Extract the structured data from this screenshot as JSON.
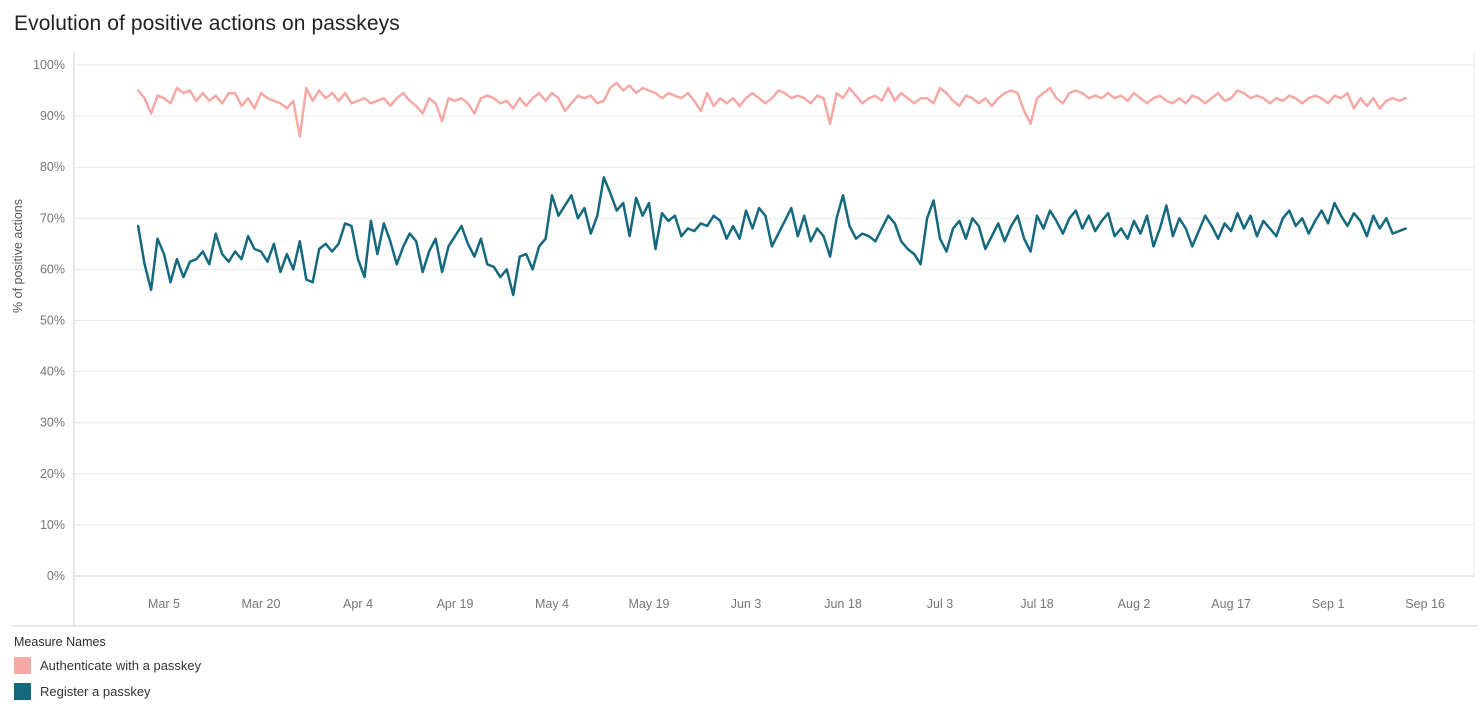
{
  "page": {
    "title": "Evolution of positive actions on passkeys"
  },
  "legend": {
    "title": "Measure Names",
    "entries": [
      "Authenticate with a passkey",
      "Register a passkey"
    ]
  },
  "chart_data": {
    "type": "line",
    "title": "Evolution of positive actions on passkeys",
    "xlabel": "",
    "ylabel": "% of positive actions",
    "ylim": [
      0,
      100
    ],
    "y_tick_step": 10,
    "y_tick_suffix": "%",
    "grid": "horizontal",
    "legend_position": "bottom-left",
    "x_unit": "day",
    "x_start_date": "Mar 1",
    "x_domain_days": [
      -10,
      206.5
    ],
    "x_tick_labels": [
      "Mar 5",
      "Mar 20",
      "Apr 4",
      "Apr 19",
      "May 4",
      "May 19",
      "Jun 3",
      "Jun 18",
      "Jul 3",
      "Jul 18",
      "Aug 2",
      "Aug 17",
      "Sep 1",
      "Sep 16"
    ],
    "x_tick_day_offsets": [
      4,
      19,
      34,
      49,
      64,
      79,
      94,
      109,
      124,
      139,
      154,
      169,
      184,
      199
    ],
    "series": [
      {
        "name": "Authenticate with a passkey",
        "color": "#f6a9a4",
        "values": [
          95,
          93.5,
          90.5,
          94,
          93.5,
          92.5,
          95.5,
          94.5,
          95,
          93,
          94.5,
          93,
          94,
          92.5,
          94.5,
          94.5,
          92,
          93.5,
          91.5,
          94.5,
          93.5,
          93,
          92.5,
          91.5,
          93,
          86,
          95.5,
          93,
          95,
          93.5,
          94.5,
          93,
          94.5,
          92.5,
          93,
          93.5,
          92.5,
          93,
          93.5,
          92,
          93.5,
          94.5,
          93,
          92,
          90.5,
          93.5,
          92.5,
          89,
          93.5,
          93,
          93.5,
          92.5,
          90.5,
          93.5,
          94,
          93.5,
          92.5,
          93,
          91.5,
          93.5,
          92,
          93.5,
          94.5,
          93,
          94.5,
          93.5,
          91,
          92.5,
          94,
          93.5,
          94,
          92.5,
          93,
          95.5,
          96.5,
          95,
          96,
          94.5,
          95.5,
          95,
          94.5,
          93.5,
          94.5,
          94,
          93.5,
          94.5,
          93,
          91,
          94.5,
          92,
          93.5,
          92.5,
          93.5,
          92,
          93.5,
          94.5,
          93.5,
          92.5,
          93.5,
          95,
          94.5,
          93.5,
          94,
          93.5,
          92.5,
          94,
          93.5,
          88.5,
          94.5,
          93.5,
          95.5,
          94,
          92.5,
          93.5,
          94,
          93,
          95.5,
          93,
          94.5,
          93.5,
          92.5,
          93.5,
          93.5,
          92.5,
          95.5,
          94.5,
          93,
          92,
          94,
          93.5,
          92.5,
          93.5,
          92,
          93.5,
          94.5,
          95,
          94.5,
          91,
          88.5,
          93.5,
          94.5,
          95.5,
          93.5,
          92.5,
          94.5,
          95,
          94.5,
          93.5,
          94,
          93.5,
          94.5,
          93.5,
          94,
          93,
          94.5,
          93.5,
          92.5,
          93.5,
          94,
          93,
          92.5,
          93.5,
          92.5,
          94,
          93.5,
          92.5,
          93.5,
          94.5,
          93,
          93.5,
          95,
          94.5,
          93.5,
          94,
          93.5,
          92.5,
          93.5,
          93,
          94,
          93.5,
          92.5,
          93.5,
          94,
          93.5,
          92.5,
          94,
          93.5,
          94.5,
          91.5,
          93.5,
          92,
          93.5,
          91.5,
          93,
          93.5,
          93,
          93.5
        ]
      },
      {
        "name": "Register a passkey",
        "color": "#15697e",
        "values": [
          68.5,
          61,
          56,
          66,
          63,
          57.5,
          62,
          58.5,
          61.5,
          62,
          63.5,
          61,
          67,
          63,
          61.5,
          63.5,
          62,
          66.5,
          64,
          63.5,
          61.5,
          65,
          59.5,
          63,
          60,
          65.5,
          58,
          57.5,
          64,
          65,
          63.5,
          65,
          69,
          68.5,
          62,
          58.5,
          69.5,
          63,
          69,
          65.5,
          61,
          64.5,
          67,
          65.5,
          59.5,
          63.5,
          66,
          59.5,
          64.5,
          66.5,
          68.5,
          65,
          62.5,
          66,
          61,
          60.5,
          58.5,
          60,
          55,
          62.5,
          63,
          60,
          64.5,
          66,
          74.5,
          70.5,
          72.5,
          74.5,
          70,
          72,
          67,
          70.5,
          78,
          75,
          71.5,
          73,
          66.5,
          74,
          70.5,
          73,
          64,
          71,
          69.5,
          70.5,
          66.5,
          68,
          67.5,
          69,
          68.5,
          70.5,
          69.5,
          66,
          68.5,
          66,
          71.5,
          68,
          72,
          70.5,
          64.5,
          67,
          69.5,
          72,
          66.5,
          70.5,
          65.5,
          68,
          66.5,
          62.5,
          70,
          74.5,
          68.5,
          66,
          67,
          66.5,
          65.5,
          68,
          70.5,
          69,
          65.5,
          64,
          63,
          61,
          70,
          73.5,
          66,
          63.5,
          68,
          69.5,
          66,
          70,
          68.5,
          64,
          66.5,
          69,
          65.5,
          68.5,
          70.5,
          66,
          63.5,
          70.5,
          68,
          71.5,
          69.5,
          67,
          70,
          71.5,
          68,
          70.5,
          67.5,
          69.5,
          71,
          66.5,
          68,
          66,
          69.5,
          67,
          70.5,
          64.5,
          68,
          72.5,
          66.5,
          70,
          68,
          64.5,
          67.5,
          70.5,
          68.5,
          66,
          69,
          67.5,
          71,
          68,
          70.5,
          66.5,
          69.5,
          68,
          66.5,
          70,
          71.5,
          68.5,
          70,
          67,
          69.5,
          71.5,
          69,
          73,
          70.5,
          68.5,
          71,
          69.5,
          66.5,
          70.5,
          68,
          70,
          67,
          67.5,
          68
        ]
      }
    ]
  }
}
